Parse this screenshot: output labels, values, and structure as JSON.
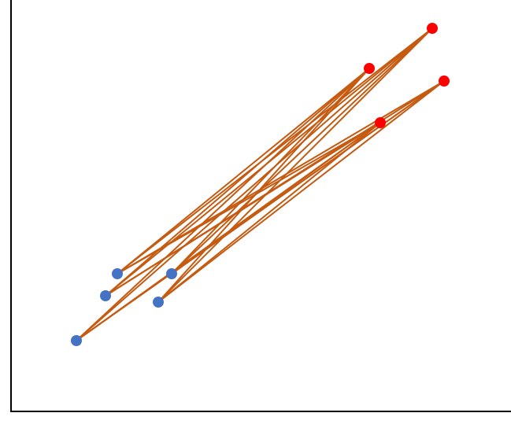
{
  "diagram": {
    "type": "bipartite-graph",
    "colors": {
      "blue_nodes": "#4472C4",
      "red_nodes": "#FF0000",
      "edges": "#C55A11",
      "axes": "#000000"
    },
    "blue_nodes": [
      {
        "id": "b1"
      },
      {
        "id": "b2"
      },
      {
        "id": "b3"
      },
      {
        "id": "b4"
      },
      {
        "id": "b5"
      }
    ],
    "red_nodes": [
      {
        "id": "r1"
      },
      {
        "id": "r2"
      },
      {
        "id": "r3"
      },
      {
        "id": "r4"
      }
    ],
    "connectivity": "complete"
  }
}
